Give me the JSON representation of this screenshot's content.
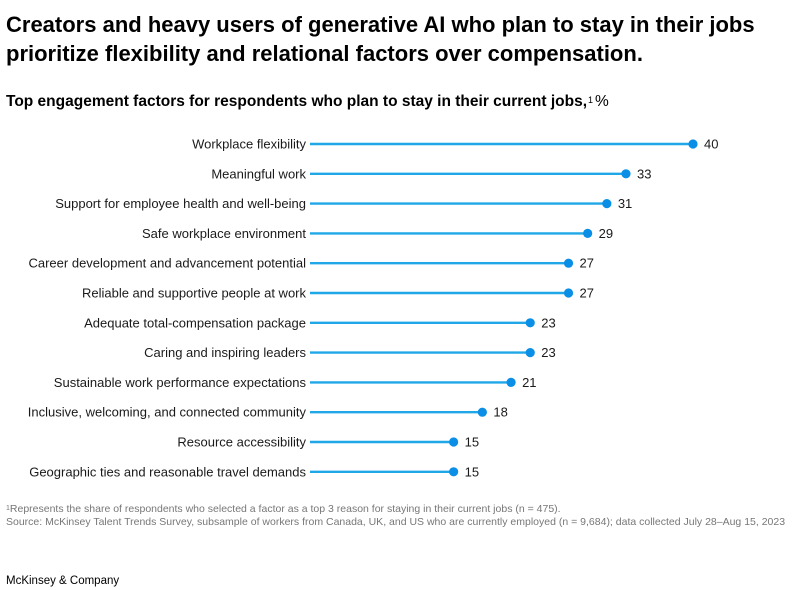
{
  "headline": "Creators and heavy users of generative AI who plan to stay in their jobs prioritize flexibility and relational factors over compensation.",
  "chart_data": {
    "type": "bar",
    "title": "Top engagement factors for respondents who plan to stay in their current jobs,",
    "title_footnote_mark": "1",
    "unit": "%",
    "categories": [
      "Workplace flexibility",
      "Meaningful work",
      "Support for employee health and well-being",
      "Safe workplace environment",
      "Career development and advancement potential",
      "Reliable and supportive people at work",
      "Adequate total-compensation package",
      "Caring and inspiring leaders",
      "Sustainable work performance expectations",
      "Inclusive, welcoming, and connected community",
      "Resource accessibility",
      "Geographic ties and reasonable travel demands"
    ],
    "values": [
      40,
      33,
      31,
      29,
      27,
      27,
      23,
      23,
      21,
      18,
      15,
      15
    ],
    "xlim": [
      0,
      40
    ],
    "grid": false,
    "legend": "none",
    "bar_color": "#1FA7E8",
    "dot_color": "#0B8FE6"
  },
  "footnotes": {
    "note_mark": "1",
    "note": "Represents the share of respondents who selected a factor as a top 3 reason for staying in their current jobs (n = 475).",
    "source": "Source: McKinsey Talent Trends Survey, subsample of workers from Canada, UK, and US who are currently employed (n = 9,684); data collected July 28–Aug 15, 2023"
  },
  "brand": "McKinsey & Company"
}
